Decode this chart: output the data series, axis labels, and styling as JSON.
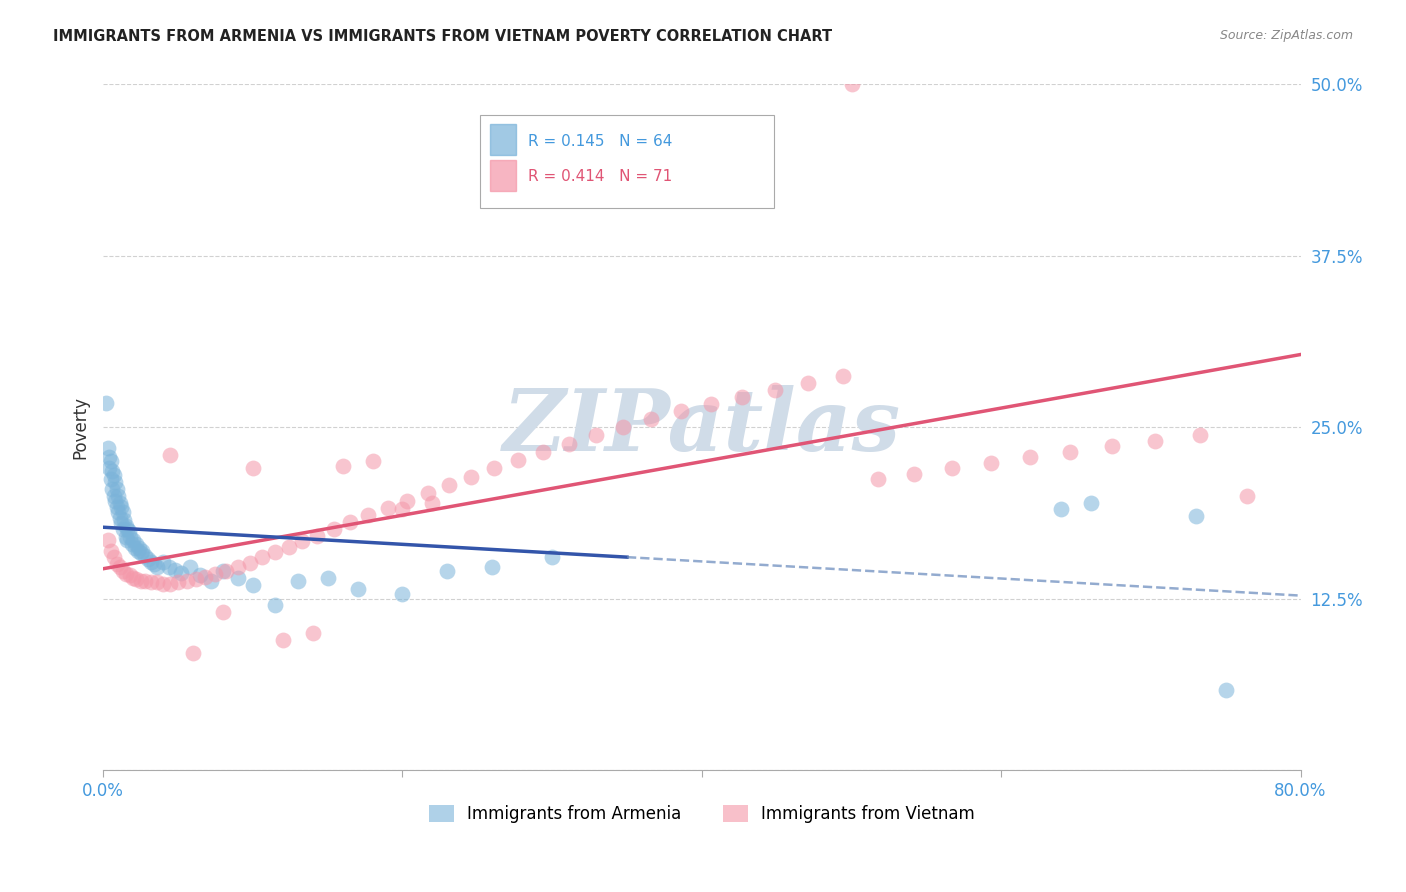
{
  "title": "IMMIGRANTS FROM ARMENIA VS IMMIGRANTS FROM VIETNAM POVERTY CORRELATION CHART",
  "source": "Source: ZipAtlas.com",
  "ylabel": "Poverty",
  "xlim": [
    0.0,
    0.8
  ],
  "ylim": [
    0.0,
    0.5
  ],
  "xticks": [
    0.0,
    0.2,
    0.4,
    0.6,
    0.8
  ],
  "xticklabels": [
    "0.0%",
    "",
    "",
    "",
    "80.0%"
  ],
  "yticks": [
    0.0,
    0.125,
    0.25,
    0.375,
    0.5
  ],
  "yticklabels": [
    "",
    "12.5%",
    "25.0%",
    "37.5%",
    "50.0%"
  ],
  "legend_label1": "Immigrants from Armenia",
  "legend_label2": "Immigrants from Vietnam",
  "armenia_color": "#7ab3d9",
  "vietnam_color": "#f496a8",
  "armenia_line_color": "#3355aa",
  "armenia_dash_color": "#6688bb",
  "vietnam_line_color": "#e05575",
  "watermark_color": "#d0dce8",
  "tick_label_color": "#4499dd",
  "armenia_R": 0.145,
  "armenia_N": 64,
  "vietnam_R": 0.414,
  "vietnam_N": 71,
  "armenia_x": [
    0.002,
    0.003,
    0.004,
    0.004,
    0.005,
    0.005,
    0.006,
    0.006,
    0.007,
    0.007,
    0.008,
    0.008,
    0.009,
    0.009,
    0.01,
    0.01,
    0.011,
    0.011,
    0.012,
    0.012,
    0.013,
    0.013,
    0.014,
    0.015,
    0.015,
    0.016,
    0.016,
    0.017,
    0.018,
    0.019,
    0.02,
    0.021,
    0.022,
    0.023,
    0.024,
    0.025,
    0.026,
    0.028,
    0.03,
    0.032,
    0.034,
    0.036,
    0.04,
    0.044,
    0.048,
    0.052,
    0.058,
    0.065,
    0.072,
    0.08,
    0.09,
    0.1,
    0.115,
    0.13,
    0.15,
    0.17,
    0.2,
    0.23,
    0.26,
    0.3,
    0.64,
    0.66,
    0.73,
    0.75
  ],
  "armenia_y": [
    0.268,
    0.235,
    0.228,
    0.22,
    0.225,
    0.212,
    0.218,
    0.205,
    0.215,
    0.2,
    0.21,
    0.196,
    0.205,
    0.192,
    0.2,
    0.188,
    0.195,
    0.184,
    0.192,
    0.18,
    0.188,
    0.176,
    0.182,
    0.178,
    0.17,
    0.176,
    0.168,
    0.174,
    0.17,
    0.165,
    0.168,
    0.162,
    0.165,
    0.16,
    0.162,
    0.158,
    0.16,
    0.156,
    0.154,
    0.152,
    0.15,
    0.148,
    0.152,
    0.148,
    0.146,
    0.144,
    0.148,
    0.142,
    0.138,
    0.145,
    0.14,
    0.135,
    0.12,
    0.138,
    0.14,
    0.132,
    0.128,
    0.145,
    0.148,
    0.155,
    0.19,
    0.195,
    0.185,
    0.058
  ],
  "vietnam_x": [
    0.003,
    0.005,
    0.007,
    0.009,
    0.011,
    0.013,
    0.015,
    0.018,
    0.02,
    0.022,
    0.025,
    0.028,
    0.032,
    0.036,
    0.04,
    0.045,
    0.05,
    0.056,
    0.062,
    0.068,
    0.075,
    0.082,
    0.09,
    0.098,
    0.106,
    0.115,
    0.124,
    0.133,
    0.143,
    0.154,
    0.165,
    0.177,
    0.19,
    0.203,
    0.217,
    0.231,
    0.246,
    0.261,
    0.277,
    0.294,
    0.311,
    0.329,
    0.347,
    0.366,
    0.386,
    0.406,
    0.427,
    0.449,
    0.471,
    0.494,
    0.518,
    0.542,
    0.567,
    0.593,
    0.619,
    0.646,
    0.674,
    0.703,
    0.733,
    0.764,
    0.1,
    0.12,
    0.14,
    0.06,
    0.08,
    0.16,
    0.18,
    0.2,
    0.22,
    0.045,
    0.5
  ],
  "vietnam_y": [
    0.168,
    0.16,
    0.155,
    0.15,
    0.148,
    0.145,
    0.143,
    0.142,
    0.14,
    0.139,
    0.138,
    0.138,
    0.137,
    0.137,
    0.136,
    0.136,
    0.137,
    0.138,
    0.139,
    0.141,
    0.143,
    0.145,
    0.148,
    0.151,
    0.155,
    0.159,
    0.163,
    0.167,
    0.171,
    0.176,
    0.181,
    0.186,
    0.191,
    0.196,
    0.202,
    0.208,
    0.214,
    0.22,
    0.226,
    0.232,
    0.238,
    0.244,
    0.25,
    0.256,
    0.262,
    0.267,
    0.272,
    0.277,
    0.282,
    0.287,
    0.212,
    0.216,
    0.22,
    0.224,
    0.228,
    0.232,
    0.236,
    0.24,
    0.244,
    0.2,
    0.22,
    0.095,
    0.1,
    0.085,
    0.115,
    0.222,
    0.225,
    0.19,
    0.195,
    0.23,
    0.5
  ]
}
